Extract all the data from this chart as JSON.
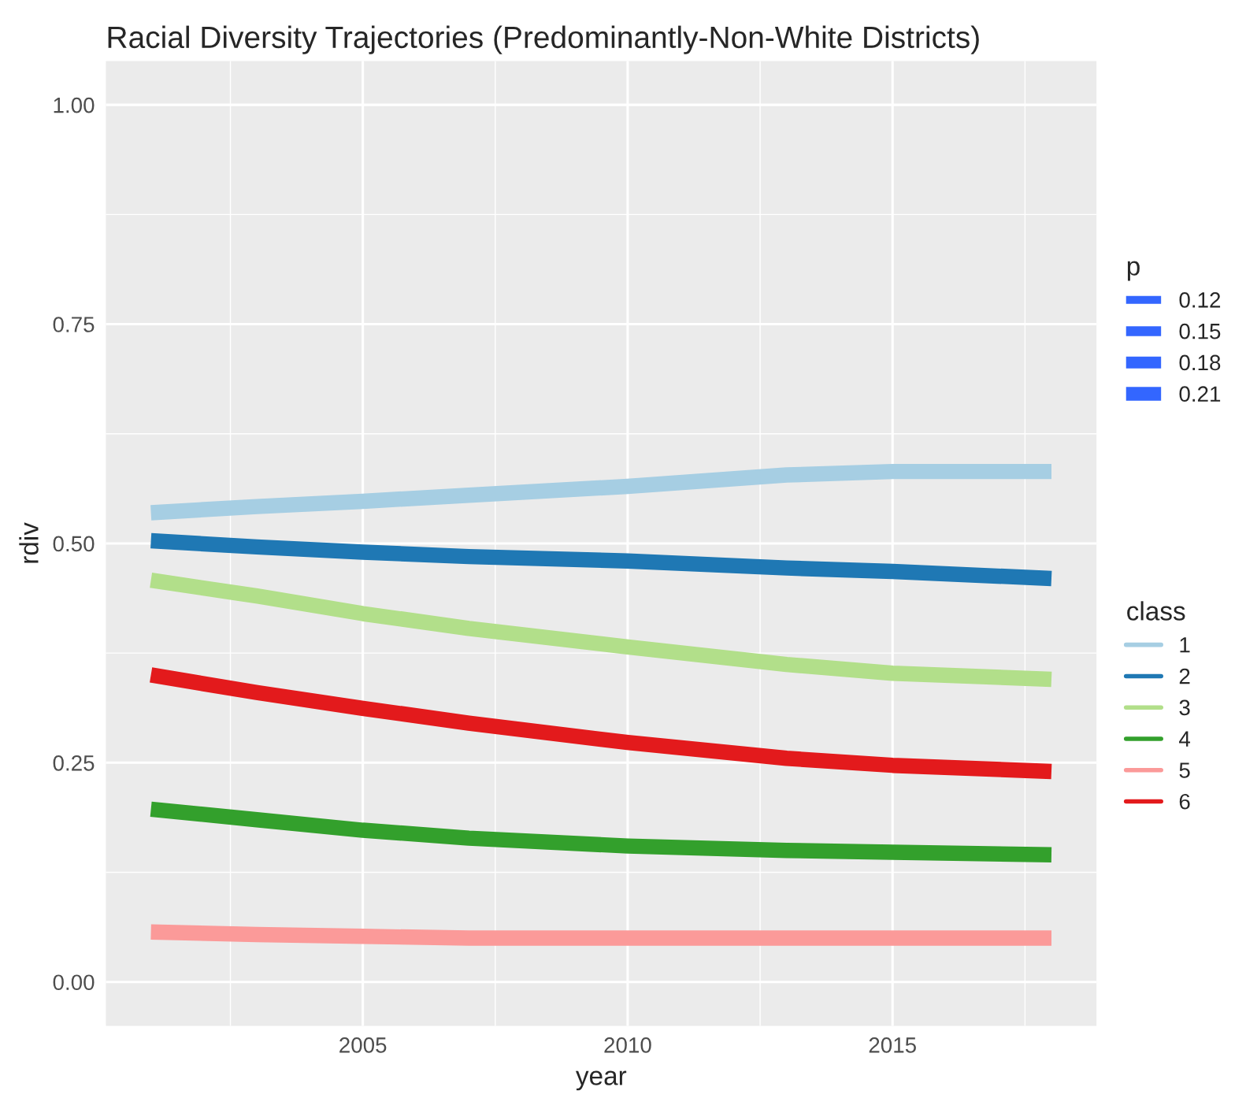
{
  "chart_data": {
    "type": "line",
    "title": "Racial Diversity Trajectories (Predominantly-Non-White Districts)",
    "xlabel": "year",
    "ylabel": "rdiv",
    "xlim": [
      2000.15,
      2018.85
    ],
    "xticks": [
      2005,
      2010,
      2015
    ],
    "ylim": [
      -0.05,
      1.05
    ],
    "yticks": [
      {
        "value": 0,
        "label": "0.00"
      },
      {
        "value": 0.25,
        "label": "0.25"
      },
      {
        "value": 0.5,
        "label": "0.50"
      },
      {
        "value": 0.75,
        "label": "0.75"
      },
      {
        "value": 1,
        "label": "1.00"
      }
    ],
    "grid": true,
    "legend": "right",
    "legend_title": [
      "p",
      "class"
    ],
    "size_legend": [
      "0.12",
      "0.15",
      "0.18",
      "0.21"
    ],
    "series": [
      {
        "name": "1",
        "color": "#a6cee3",
        "x": [
          2001,
          2003,
          2005,
          2007,
          2010,
          2013,
          2015,
          2018
        ],
        "values": [
          0.535,
          0.542,
          0.548,
          0.555,
          0.565,
          0.578,
          0.582,
          0.582
        ]
      },
      {
        "name": "2",
        "color": "#1f78b4",
        "x": [
          2001,
          2003,
          2005,
          2007,
          2010,
          2013,
          2015,
          2018
        ],
        "values": [
          0.503,
          0.496,
          0.49,
          0.485,
          0.48,
          0.472,
          0.468,
          0.46
        ]
      },
      {
        "name": "3",
        "color": "#b2df8a",
        "x": [
          2001,
          2003,
          2005,
          2007,
          2010,
          2013,
          2015,
          2018
        ],
        "values": [
          0.458,
          0.44,
          0.42,
          0.403,
          0.382,
          0.362,
          0.352,
          0.345
        ]
      },
      {
        "name": "4",
        "color": "#33a02c",
        "x": [
          2001,
          2003,
          2005,
          2007,
          2010,
          2013,
          2015,
          2018
        ],
        "values": [
          0.197,
          0.185,
          0.173,
          0.164,
          0.155,
          0.15,
          0.148,
          0.145
        ]
      },
      {
        "name": "5",
        "color": "#fb9a99",
        "x": [
          2001,
          2003,
          2005,
          2007,
          2010,
          2013,
          2015,
          2018
        ],
        "values": [
          0.057,
          0.054,
          0.052,
          0.05,
          0.05,
          0.05,
          0.05,
          0.05
        ]
      },
      {
        "name": "6",
        "color": "#e31a1c",
        "x": [
          2001,
          2003,
          2005,
          2007,
          2010,
          2013,
          2015,
          2018
        ],
        "values": [
          0.35,
          0.33,
          0.312,
          0.295,
          0.273,
          0.255,
          0.247,
          0.24
        ]
      }
    ]
  }
}
